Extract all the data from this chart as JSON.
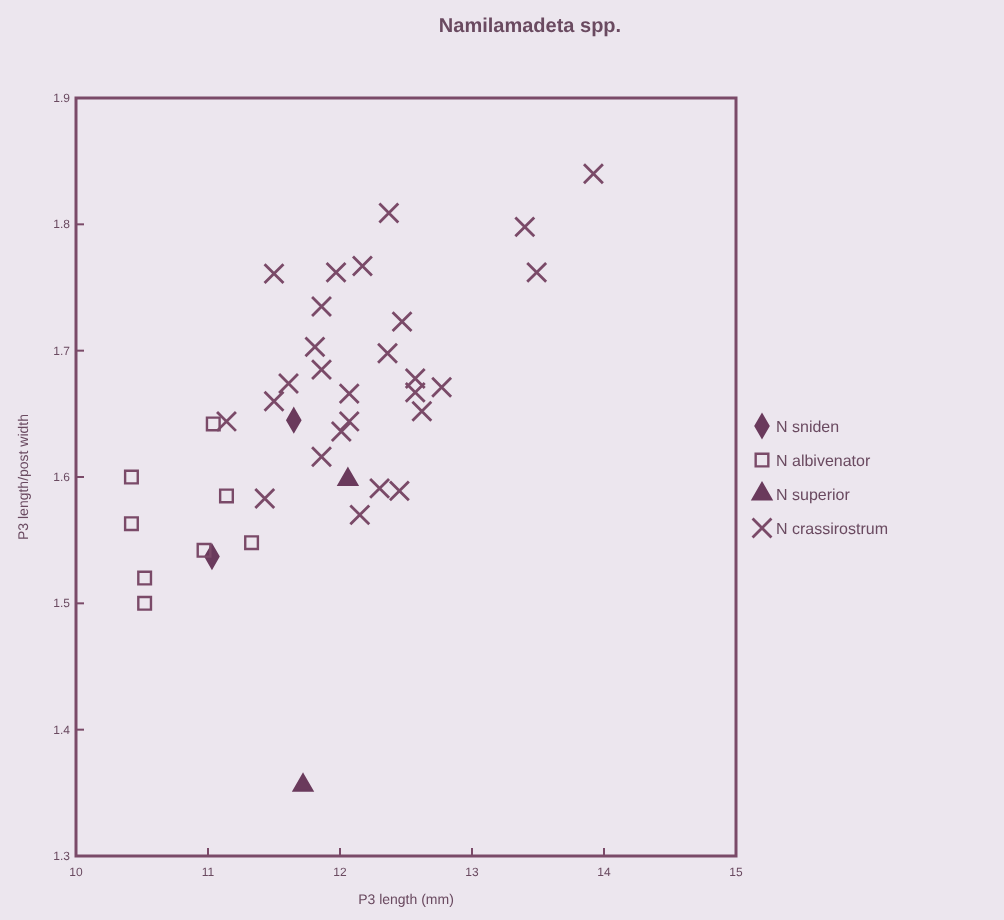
{
  "chart_data": {
    "type": "scatter",
    "title": "Namilamadeta spp.",
    "xlabel": "P3 length (mm)",
    "ylabel": "P3 length/post width",
    "xlim": [
      10,
      15
    ],
    "xticks": [
      10,
      11,
      12,
      13,
      14,
      15
    ],
    "ylim": [
      1.3,
      1.9
    ],
    "yticks": [
      1.3,
      1.4,
      1.5,
      1.6,
      1.7,
      1.8,
      1.9
    ],
    "legend": "right",
    "grid": false,
    "series": [
      {
        "name": "N sniden",
        "color": "#6a3a5c",
        "marker": "diamond",
        "x": [
          11.65,
          11.03
        ],
        "values": [
          1.645,
          1.537
        ]
      },
      {
        "name": "N albivenator",
        "color": "#7a4a68",
        "marker": "square",
        "x": [
          10.42,
          10.42,
          10.52,
          10.52,
          11.04,
          11.14,
          10.97,
          11.33
        ],
        "values": [
          1.6,
          1.563,
          1.52,
          1.5,
          1.642,
          1.585,
          1.542,
          1.548
        ]
      },
      {
        "name": "N superior",
        "color": "#6a3a5c",
        "marker": "triangle",
        "x": [
          12.06,
          11.72
        ],
        "values": [
          1.598,
          1.356
        ]
      },
      {
        "name": "N crassirostrum",
        "color": "#7a4a68",
        "marker": "cross",
        "x": [
          12.37,
          13.4,
          13.49,
          11.5,
          11.97,
          12.17,
          11.86,
          12.47,
          11.81,
          12.36,
          11.86,
          11.61,
          11.5,
          12.07,
          12.57,
          12.57,
          12.77,
          12.62,
          11.14,
          12.07,
          12.01,
          11.86,
          11.43,
          12.3,
          12.45,
          12.15,
          13.92
        ],
        "values": [
          1.809,
          1.798,
          1.762,
          1.761,
          1.762,
          1.767,
          1.735,
          1.723,
          1.703,
          1.698,
          1.685,
          1.674,
          1.66,
          1.666,
          1.678,
          1.667,
          1.671,
          1.652,
          1.644,
          1.644,
          1.636,
          1.616,
          1.583,
          1.591,
          1.589,
          1.57,
          1.84
        ]
      }
    ]
  }
}
